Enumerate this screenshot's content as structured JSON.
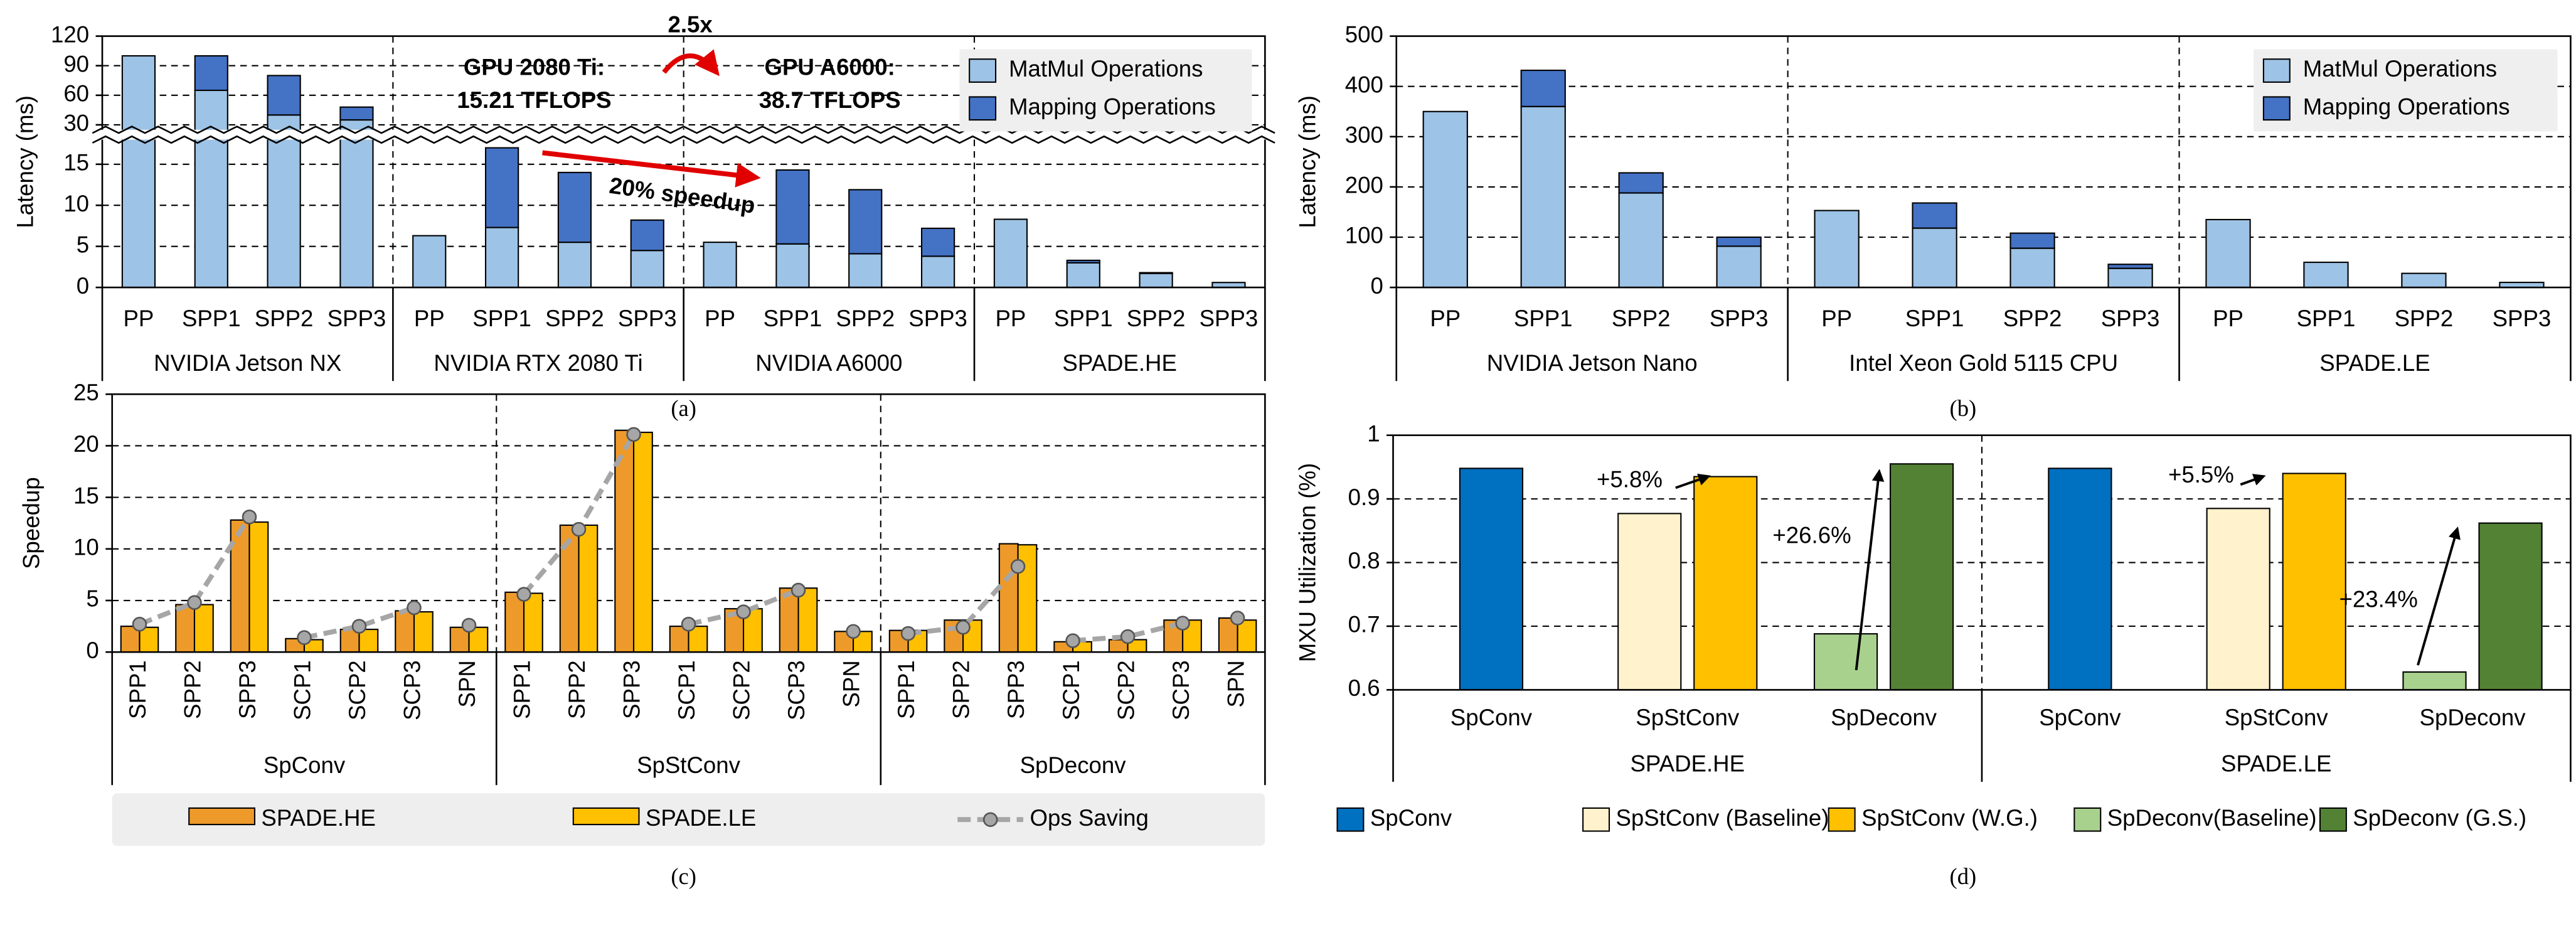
{
  "chart_data": [
    {
      "type": "bar",
      "stacked": true,
      "caption": "(a)",
      "ylabel": "Latency (ms)",
      "ylim": [
        0,
        120
      ],
      "ybreak": [
        18,
        25
      ],
      "yticks": [
        0,
        5,
        10,
        15,
        30,
        60,
        90,
        120
      ],
      "grid": true,
      "legend": "upper right",
      "groups": [
        {
          "name": "NVIDIA Jetson NX",
          "categories": [
            "PP",
            "SPP1",
            "SPP2",
            "SPP3"
          ]
        },
        {
          "name": "NVIDIA RTX 2080 Ti",
          "categories": [
            "PP",
            "SPP1",
            "SPP2",
            "SPP3"
          ]
        },
        {
          "name": "NVIDIA A6000",
          "categories": [
            "PP",
            "SPP1",
            "SPP2",
            "SPP3"
          ]
        },
        {
          "name": "SPADE.HE",
          "categories": [
            "PP",
            "SPP1",
            "SPP2",
            "SPP3"
          ]
        }
      ],
      "series": [
        {
          "name": "MatMul Operations",
          "color": "#9dc3e6",
          "values": [
            100,
            65,
            40,
            35,
            6.3,
            7.3,
            5.5,
            4.5,
            5.5,
            5.3,
            4.1,
            3.8,
            8.3,
            3.0,
            1.7,
            0.6
          ]
        },
        {
          "name": "Mapping Operations",
          "color": "#4472c4",
          "values": [
            0,
            35,
            40,
            13,
            0,
            9.7,
            8.5,
            3.7,
            0,
            9,
            7.8,
            3.4,
            0,
            0.3,
            0.1,
            0
          ]
        }
      ],
      "annotations": [
        "2.5x",
        "GPU 2080 Ti:",
        "15.21 TFLOPS",
        "GPU A6000:",
        "38.7 TFLOPS",
        "20% speedup"
      ]
    },
    {
      "type": "bar",
      "stacked": true,
      "caption": "(b)",
      "ylabel": "Latency (ms)",
      "ylim": [
        0,
        500
      ],
      "yticks": [
        0,
        100,
        200,
        300,
        400,
        500
      ],
      "grid": true,
      "legend": "upper right",
      "groups": [
        {
          "name": "NVIDIA Jetson Nano",
          "categories": [
            "PP",
            "SPP1",
            "SPP2",
            "SPP3"
          ]
        },
        {
          "name": "Intel Xeon Gold 5115 CPU",
          "categories": [
            "PP",
            "SPP1",
            "SPP2",
            "SPP3"
          ]
        },
        {
          "name": "SPADE.LE",
          "categories": [
            "PP",
            "SPP1",
            "SPP2",
            "SPP3"
          ]
        }
      ],
      "series": [
        {
          "name": "MatMul Operations",
          "color": "#9dc3e6",
          "values": [
            350,
            360,
            188,
            82,
            153,
            118,
            78,
            38,
            135,
            50,
            28,
            10
          ]
        },
        {
          "name": "Mapping Operations",
          "color": "#4472c4",
          "values": [
            0,
            72,
            40,
            18,
            0,
            50,
            30,
            8,
            0,
            0,
            0,
            0
          ]
        }
      ]
    },
    {
      "type": "bar",
      "stacked": false,
      "caption": "(c)",
      "ylabel": "Speedup",
      "ylim": [
        0,
        25
      ],
      "yticks": [
        0,
        5,
        10,
        15,
        20,
        25
      ],
      "grid": true,
      "legend": "lower center",
      "groups": [
        {
          "name": "SpConv",
          "categories": [
            "SPP1",
            "SPP2",
            "SPP3",
            "SCP1",
            "SCP2",
            "SCP3",
            "SPN"
          ]
        },
        {
          "name": "SpStConv",
          "categories": [
            "SPP1",
            "SPP2",
            "SPP3",
            "SCP1",
            "SCP2",
            "SCP3",
            "SPN"
          ]
        },
        {
          "name": "SpDeconv",
          "categories": [
            "SPP1",
            "SPP2",
            "SPP3",
            "SCP1",
            "SCP2",
            "SCP3",
            "SPN"
          ]
        }
      ],
      "series": [
        {
          "name": "SPADE.HE",
          "color": "#ed9a2a",
          "values": [
            2.5,
            4.6,
            12.8,
            1.3,
            2.2,
            4.0,
            2.4,
            5.8,
            12.3,
            21.5,
            2.5,
            4.2,
            6.2,
            2.0,
            2.1,
            3.1,
            10.5,
            1.0,
            1.2,
            3.1,
            3.3
          ]
        },
        {
          "name": "SPADE.LE",
          "color": "#ffc000",
          "values": [
            2.4,
            4.6,
            12.6,
            1.2,
            2.2,
            3.9,
            2.4,
            5.7,
            12.3,
            21.3,
            2.5,
            4.2,
            6.2,
            2.0,
            2.1,
            3.1,
            10.4,
            1.0,
            1.2,
            3.1,
            3.1
          ]
        },
        {
          "name": "Ops Saving",
          "type": "line",
          "color": "#a6a6a6",
          "values": [
            2.7,
            4.8,
            13.1,
            1.4,
            2.5,
            4.3,
            2.6,
            5.6,
            11.9,
            21.1,
            2.7,
            3.9,
            6.0,
            2.0,
            1.8,
            2.4,
            8.3,
            1.1,
            1.5,
            2.8,
            3.3
          ]
        }
      ]
    },
    {
      "type": "bar",
      "stacked": false,
      "caption": "(d)",
      "ylabel": "MXU Utilization (%)",
      "ylim": [
        0.6,
        1
      ],
      "yticks": [
        0.6,
        0.7,
        0.8,
        0.9,
        1
      ],
      "grid": true,
      "legend": "lower center",
      "groups": [
        {
          "name": "SPADE.HE",
          "categories": [
            "SpConv",
            "SpStConv",
            "SpDeconv"
          ]
        },
        {
          "name": "SPADE.LE",
          "categories": [
            "SpConv",
            "SpStConv",
            "SpDeconv"
          ]
        }
      ],
      "series": [
        {
          "name": "SpConv",
          "color": "#0070c0",
          "values": [
            0.948,
            null,
            null,
            0.948,
            null,
            null
          ]
        },
        {
          "name": "SpStConv (Baseline)",
          "color": "#fff2cc",
          "values": [
            null,
            0.877,
            null,
            null,
            0.885,
            null
          ]
        },
        {
          "name": "SpStConv (W.G.)",
          "color": "#ffc000",
          "values": [
            null,
            0.935,
            null,
            null,
            0.94,
            null
          ]
        },
        {
          "name": "SpDeconv(Baseline)",
          "color": "#a9d18e",
          "values": [
            null,
            null,
            0.688,
            null,
            null,
            0.628
          ]
        },
        {
          "name": "SpDeconv (G.S.)",
          "color": "#548235",
          "values": [
            null,
            null,
            0.955,
            null,
            null,
            0.862
          ]
        }
      ],
      "annotations": [
        "+5.8%",
        "+26.6%",
        "+5.5%",
        "+23.4%"
      ]
    }
  ]
}
